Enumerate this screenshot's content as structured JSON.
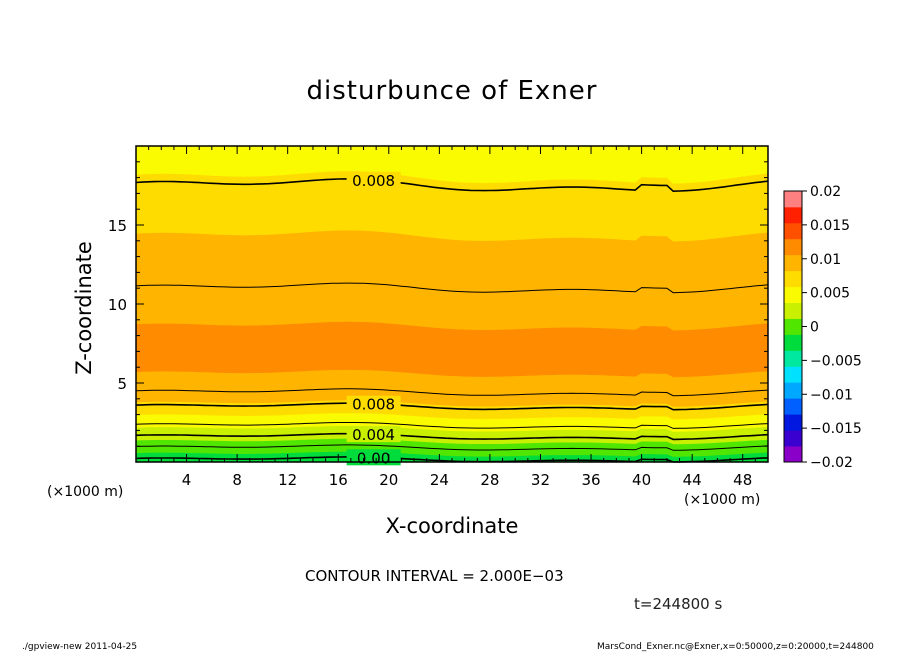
{
  "chart_data": {
    "type": "heatmap",
    "title": "disturbunce of Exner",
    "xlabel": "X-coordinate",
    "ylabel": "Z-coordinate",
    "x_unit_left": "(×1000 m)",
    "x_unit_right": "(×1000 m)",
    "xlim": [
      0,
      50
    ],
    "ylim": [
      0,
      20
    ],
    "xticks": [
      4,
      8,
      12,
      16,
      20,
      24,
      28,
      32,
      36,
      40,
      44,
      48
    ],
    "yticks": [
      5,
      10,
      15
    ],
    "colorbar": {
      "levels": [
        -0.02,
        -0.0175,
        -0.015,
        -0.0125,
        -0.01,
        -0.0075,
        -0.005,
        -0.0025,
        0,
        0.0025,
        0.005,
        0.0075,
        0.01,
        0.0125,
        0.015,
        0.0175,
        0.02
      ],
      "tick_labels": [
        "0.02",
        "0.015",
        "0.01",
        "0.005",
        "0",
        "−0.005",
        "−0.01",
        "−0.015",
        "−0.02"
      ],
      "colors": [
        "#8b00c8",
        "#3a00d0",
        "#0018e0",
        "#0060ff",
        "#00a8ff",
        "#00e0ff",
        "#00e8a0",
        "#00dc3c",
        "#50e600",
        "#c8f000",
        "#fafa00",
        "#ffdc00",
        "#ffb400",
        "#ff8c00",
        "#ff5000",
        "#ff2000",
        "#ff8080"
      ]
    },
    "bands": [
      {
        "z_bottom": 0.0,
        "z_top": 0.5,
        "value": -0.001
      },
      {
        "z_bottom": 0.5,
        "z_top": 1.3,
        "value": 0.001
      },
      {
        "z_bottom": 1.3,
        "z_top": 2.1,
        "value": 0.0035
      },
      {
        "z_bottom": 2.1,
        "z_top": 2.9,
        "value": 0.006
      },
      {
        "z_bottom": 2.9,
        "z_top": 3.7,
        "value": 0.0085
      },
      {
        "z_bottom": 3.7,
        "z_top": 4.4,
        "value": 0.0105
      },
      {
        "z_bottom": 4.4,
        "z_top": 5.6,
        "value": 0.0115
      },
      {
        "z_bottom": 5.6,
        "z_top": 8.6,
        "value": 0.0135
      },
      {
        "z_bottom": 8.6,
        "z_top": 14.3,
        "value": 0.0115
      },
      {
        "z_bottom": 14.3,
        "z_top": 18.0,
        "value": 0.009
      },
      {
        "z_bottom": 18.0,
        "z_top": 20.0,
        "value": 0.0065
      }
    ],
    "contours": [
      {
        "z": 0.15,
        "label": "0.00"
      },
      {
        "z": 0.9,
        "label": ""
      },
      {
        "z": 1.6,
        "label": "0.004"
      },
      {
        "z": 2.3,
        "label": ""
      },
      {
        "z": 3.5,
        "label": "0.008"
      },
      {
        "z": 4.4,
        "label": ""
      },
      {
        "z": 11.0,
        "label": ""
      },
      {
        "z": 17.5,
        "label": "0.008"
      }
    ],
    "contour_interval_text": "CONTOUR INTERVAL = 2.000E−03",
    "time_text": "t=244800 s"
  },
  "footer": {
    "left": "./gpview-new   2011-04-25",
    "right": "MarsCond_Exner.nc@Exner,x=0:50000,z=0:20000,t=244800"
  }
}
